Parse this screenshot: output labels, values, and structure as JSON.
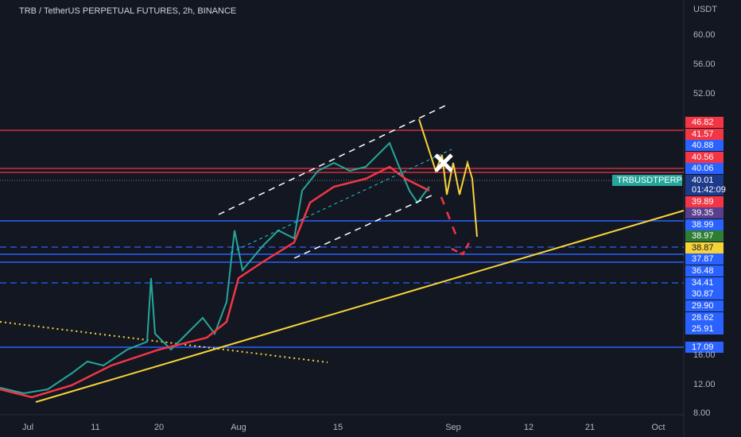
{
  "header": {
    "title": "TRB / TetherUS PERPETUAL FUTURES, 2h, BINANCE"
  },
  "price_axis": {
    "unit": "USDT",
    "labels": [
      "60.00",
      "56.00",
      "52.00",
      "16.00",
      "12.00",
      "8.00"
    ]
  },
  "price_tags": [
    "46.82",
    "41.57",
    "40.88",
    "40.56",
    "40.06",
    "40.01",
    "01:42:09",
    "39.89",
    "39.35",
    "38.99",
    "38.97",
    "38.87",
    "37.87",
    "36.48",
    "34.41",
    "30.87",
    "29.90",
    "28.62",
    "25.91",
    "17.09"
  ],
  "symbol_tag": "TRBUSDTPERP",
  "time_axis": {
    "labels": [
      "Jul",
      "11",
      "20",
      "Aug",
      "15",
      "Sep",
      "12",
      "21",
      "Oct"
    ]
  }
}
